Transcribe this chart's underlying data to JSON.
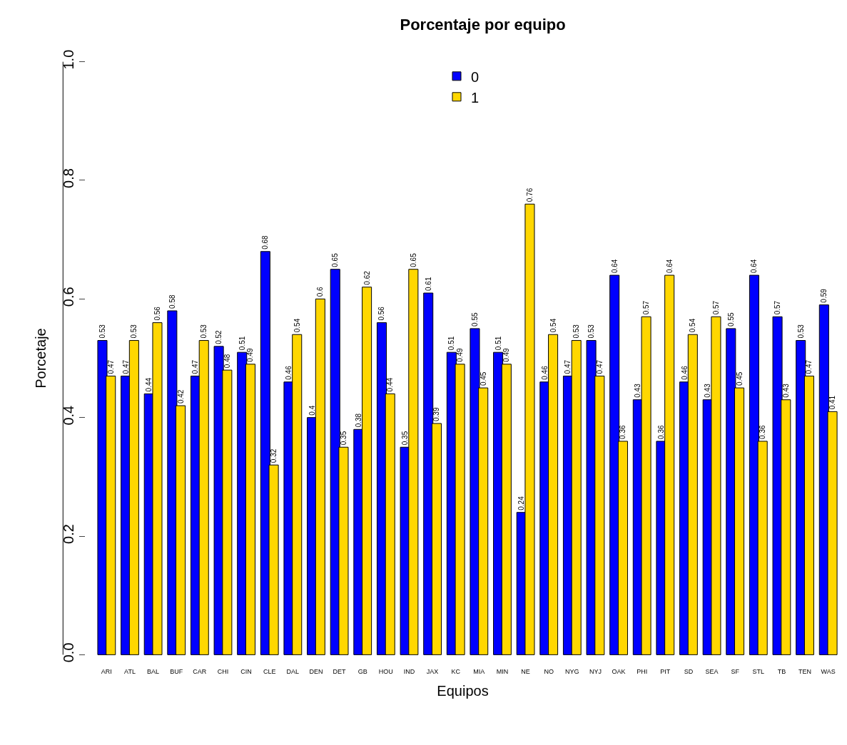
{
  "chart_data": {
    "type": "bar",
    "title": "Porcentaje por equipo",
    "xlabel": "Equipos",
    "ylabel": "Porcetaje",
    "categories": [
      "ARI",
      "ATL",
      "BAL",
      "BUF",
      "CAR",
      "CHI",
      "CIN",
      "CLE",
      "DAL",
      "DEN",
      "DET",
      "GB",
      "HOU",
      "IND",
      "JAX",
      "KC",
      "MIA",
      "MIN",
      "NE",
      "NO",
      "NYG",
      "NYJ",
      "OAK",
      "PHI",
      "PIT",
      "SD",
      "SEA",
      "SF",
      "STL",
      "TB",
      "TEN",
      "WAS"
    ],
    "series": [
      {
        "name": "0",
        "color": "#0000ff",
        "values": [
          0.53,
          0.47,
          0.44,
          0.58,
          0.47,
          0.52,
          0.51,
          0.68,
          0.46,
          0.4,
          0.65,
          0.38,
          0.56,
          0.35,
          0.61,
          0.51,
          0.55,
          0.51,
          0.24,
          0.46,
          0.47,
          0.53,
          0.64,
          0.43,
          0.36,
          0.46,
          0.43,
          0.55,
          0.64,
          0.57,
          0.53,
          0.59
        ]
      },
      {
        "name": "1",
        "color": "#ffd700",
        "values": [
          0.47,
          0.53,
          0.56,
          0.42,
          0.53,
          0.48,
          0.49,
          0.32,
          0.54,
          0.6,
          0.35,
          0.62,
          0.44,
          0.65,
          0.39,
          0.49,
          0.45,
          0.49,
          0.76,
          0.54,
          0.53,
          0.47,
          0.36,
          0.57,
          0.64,
          0.54,
          0.57,
          0.45,
          0.36,
          0.43,
          0.47,
          0.41
        ]
      }
    ],
    "ylim": [
      0,
      1
    ],
    "yticks": [
      {
        "value": 0,
        "label": "0.0"
      },
      0.2,
      0.4,
      0.6,
      0.8,
      {
        "value": 1,
        "label": "1.0"
      }
    ],
    "data_labels": true,
    "legend": "top"
  }
}
